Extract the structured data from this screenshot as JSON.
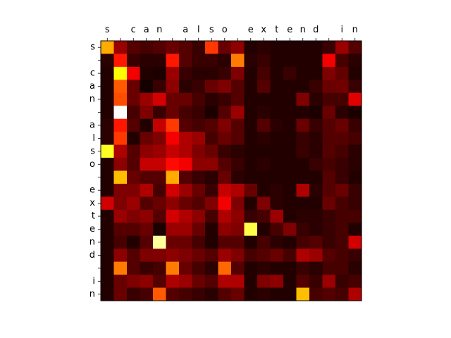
{
  "chart_data": {
    "type": "heatmap",
    "title": "",
    "xlabel": "",
    "ylabel": "",
    "colormap": "hot",
    "value_range": [
      0,
      1
    ],
    "grid": false,
    "legend": "none",
    "x_labels": [
      "s",
      " ",
      "c",
      "a",
      "n",
      " ",
      "a",
      "l",
      "s",
      "o",
      " ",
      "e",
      "x",
      "t",
      "e",
      "n",
      "d",
      " ",
      "i",
      "n"
    ],
    "y_labels": [
      "s",
      " ",
      "c",
      "a",
      "n",
      " ",
      "a",
      "l",
      "s",
      "o",
      " ",
      "e",
      "x",
      "t",
      "e",
      "n",
      "d",
      " ",
      "i",
      "n"
    ],
    "values": [
      [
        0.62,
        0.22,
        0.12,
        0.1,
        0.12,
        0.15,
        0.12,
        0.08,
        0.45,
        0.15,
        0.2,
        0.05,
        0.06,
        0.05,
        0.05,
        0.05,
        0.05,
        0.08,
        0.22,
        0.12
      ],
      [
        0.06,
        0.4,
        0.08,
        0.06,
        0.06,
        0.4,
        0.12,
        0.08,
        0.08,
        0.06,
        0.55,
        0.06,
        0.08,
        0.05,
        0.05,
        0.05,
        0.05,
        0.35,
        0.1,
        0.06
      ],
      [
        0.05,
        0.75,
        0.35,
        0.05,
        0.04,
        0.22,
        0.08,
        0.06,
        0.06,
        0.08,
        0.18,
        0.05,
        0.1,
        0.05,
        0.08,
        0.05,
        0.05,
        0.18,
        0.14,
        0.05
      ],
      [
        0.05,
        0.5,
        0.15,
        0.03,
        0.08,
        0.2,
        0.06,
        0.08,
        0.15,
        0.18,
        0.12,
        0.05,
        0.12,
        0.05,
        0.05,
        0.05,
        0.08,
        0.15,
        0.16,
        0.08
      ],
      [
        0.05,
        0.48,
        0.15,
        0.22,
        0.3,
        0.15,
        0.15,
        0.1,
        0.06,
        0.08,
        0.12,
        0.05,
        0.05,
        0.05,
        0.05,
        0.18,
        0.06,
        0.1,
        0.1,
        0.32
      ],
      [
        0.05,
        1.0,
        0.1,
        0.18,
        0.08,
        0.15,
        0.1,
        0.08,
        0.04,
        0.12,
        0.22,
        0.05,
        0.06,
        0.05,
        0.05,
        0.05,
        0.04,
        0.15,
        0.06,
        0.04
      ],
      [
        0.06,
        0.4,
        0.12,
        0.05,
        0.28,
        0.45,
        0.12,
        0.1,
        0.12,
        0.18,
        0.12,
        0.05,
        0.12,
        0.06,
        0.05,
        0.15,
        0.08,
        0.12,
        0.15,
        0.08
      ],
      [
        0.06,
        0.45,
        0.05,
        0.15,
        0.18,
        0.35,
        0.25,
        0.22,
        0.1,
        0.15,
        0.12,
        0.05,
        0.06,
        0.05,
        0.05,
        0.08,
        0.06,
        0.12,
        0.12,
        0.1
      ],
      [
        0.78,
        0.25,
        0.12,
        0.2,
        0.22,
        0.28,
        0.25,
        0.18,
        0.15,
        0.08,
        0.06,
        0.05,
        0.05,
        0.05,
        0.05,
        0.08,
        0.06,
        0.12,
        0.1,
        0.06
      ],
      [
        0.05,
        0.2,
        0.12,
        0.28,
        0.28,
        0.38,
        0.35,
        0.2,
        0.2,
        0.12,
        0.08,
        0.05,
        0.06,
        0.05,
        0.05,
        0.05,
        0.08,
        0.1,
        0.08,
        0.06
      ],
      [
        0.05,
        0.65,
        0.15,
        0.12,
        0.12,
        0.62,
        0.12,
        0.08,
        0.06,
        0.15,
        0.06,
        0.05,
        0.05,
        0.05,
        0.05,
        0.05,
        0.05,
        0.12,
        0.08,
        0.05
      ],
      [
        0.05,
        0.18,
        0.18,
        0.25,
        0.1,
        0.3,
        0.22,
        0.15,
        0.08,
        0.28,
        0.25,
        0.15,
        0.05,
        0.06,
        0.05,
        0.25,
        0.06,
        0.12,
        0.15,
        0.08
      ],
      [
        0.3,
        0.18,
        0.22,
        0.12,
        0.15,
        0.2,
        0.15,
        0.12,
        0.18,
        0.35,
        0.18,
        0.05,
        0.18,
        0.06,
        0.05,
        0.05,
        0.05,
        0.15,
        0.1,
        0.08
      ],
      [
        0.05,
        0.22,
        0.18,
        0.2,
        0.12,
        0.3,
        0.25,
        0.2,
        0.1,
        0.25,
        0.2,
        0.08,
        0.1,
        0.22,
        0.05,
        0.06,
        0.06,
        0.08,
        0.1,
        0.1
      ],
      [
        0.05,
        0.12,
        0.12,
        0.15,
        0.04,
        0.22,
        0.22,
        0.15,
        0.05,
        0.2,
        0.18,
        0.82,
        0.05,
        0.1,
        0.18,
        0.08,
        0.06,
        0.08,
        0.1,
        0.05
      ],
      [
        0.05,
        0.1,
        0.05,
        0.12,
        0.9,
        0.15,
        0.15,
        0.1,
        0.05,
        0.12,
        0.12,
        0.05,
        0.1,
        0.06,
        0.05,
        0.1,
        0.12,
        0.08,
        0.1,
        0.3
      ],
      [
        0.05,
        0.2,
        0.12,
        0.18,
        0.18,
        0.2,
        0.18,
        0.15,
        0.12,
        0.22,
        0.18,
        0.1,
        0.12,
        0.15,
        0.1,
        0.25,
        0.22,
        0.12,
        0.1,
        0.08
      ],
      [
        0.05,
        0.55,
        0.12,
        0.08,
        0.1,
        0.55,
        0.15,
        0.1,
        0.06,
        0.52,
        0.12,
        0.05,
        0.06,
        0.05,
        0.05,
        0.08,
        0.06,
        0.1,
        0.1,
        0.06
      ],
      [
        0.05,
        0.15,
        0.18,
        0.2,
        0.12,
        0.25,
        0.22,
        0.15,
        0.12,
        0.25,
        0.25,
        0.05,
        0.18,
        0.2,
        0.05,
        0.12,
        0.08,
        0.22,
        0.08,
        0.1
      ],
      [
        0.05,
        0.15,
        0.08,
        0.1,
        0.5,
        0.12,
        0.1,
        0.08,
        0.06,
        0.12,
        0.15,
        0.05,
        0.06,
        0.05,
        0.05,
        0.65,
        0.1,
        0.12,
        0.1,
        0.25
      ]
    ]
  }
}
